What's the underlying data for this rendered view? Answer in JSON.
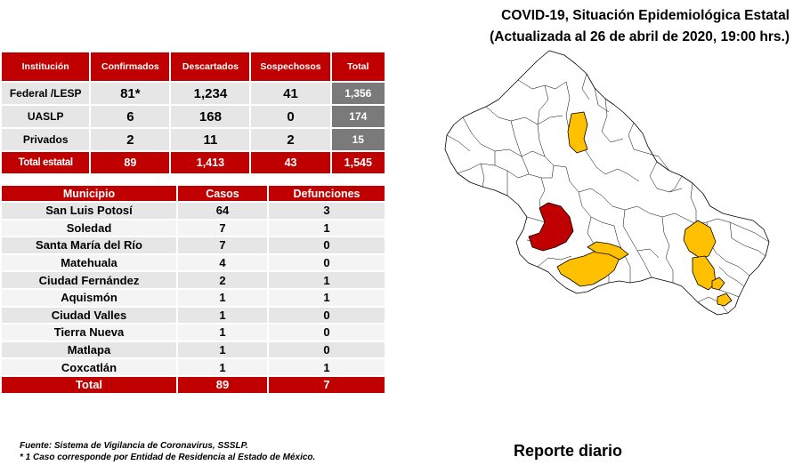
{
  "header": {
    "title": "COVID-19, Situación Epidemiológica Estatal",
    "subtitle": "(Actualizada al 26 de abril de 2020, 19:00 hrs.)"
  },
  "institutions": {
    "headers": [
      "Institución",
      "Confirmados",
      "Descartados",
      "Sospechosos",
      "Total"
    ],
    "rows": [
      [
        "Federal /LESP",
        "81*",
        "1,234",
        "41",
        "1,356"
      ],
      [
        "UASLP",
        "6",
        "168",
        "0",
        "174"
      ],
      [
        "Privados",
        "2",
        "11",
        "2",
        "15"
      ]
    ],
    "total": [
      "Total estatal",
      "89",
      "1,413",
      "43",
      "1,545"
    ]
  },
  "municipalities": {
    "headers": [
      "Municipio",
      "Casos",
      "Defunciones"
    ],
    "rows": [
      [
        "San Luis Potosí",
        "64",
        "3"
      ],
      [
        "Soledad",
        "7",
        "1"
      ],
      [
        "Santa María del Río",
        "7",
        "0"
      ],
      [
        "Matehuala",
        "4",
        "0"
      ],
      [
        "Ciudad Fernández",
        "2",
        "1"
      ],
      [
        "Aquismón",
        "1",
        "1"
      ],
      [
        "Ciudad Valles",
        "1",
        "0"
      ],
      [
        "Tierra Nueva",
        "1",
        "0"
      ],
      [
        "Matlapa",
        "1",
        "0"
      ],
      [
        "Coxcatlán",
        "1",
        "1"
      ]
    ],
    "total": [
      "Total",
      "89",
      "7"
    ]
  },
  "map": {
    "colors": {
      "base": "#ffffff",
      "stroke": "#000000",
      "high": "#c00000",
      "low": "#ffc000"
    }
  },
  "footer": {
    "source": "Fuente: Sistema de Vigilancia de Coronavirus, SSSLP.",
    "note": "* 1 Caso corresponde por Entidad de Residencia al Estado de México.",
    "label": "Reporte diario"
  }
}
